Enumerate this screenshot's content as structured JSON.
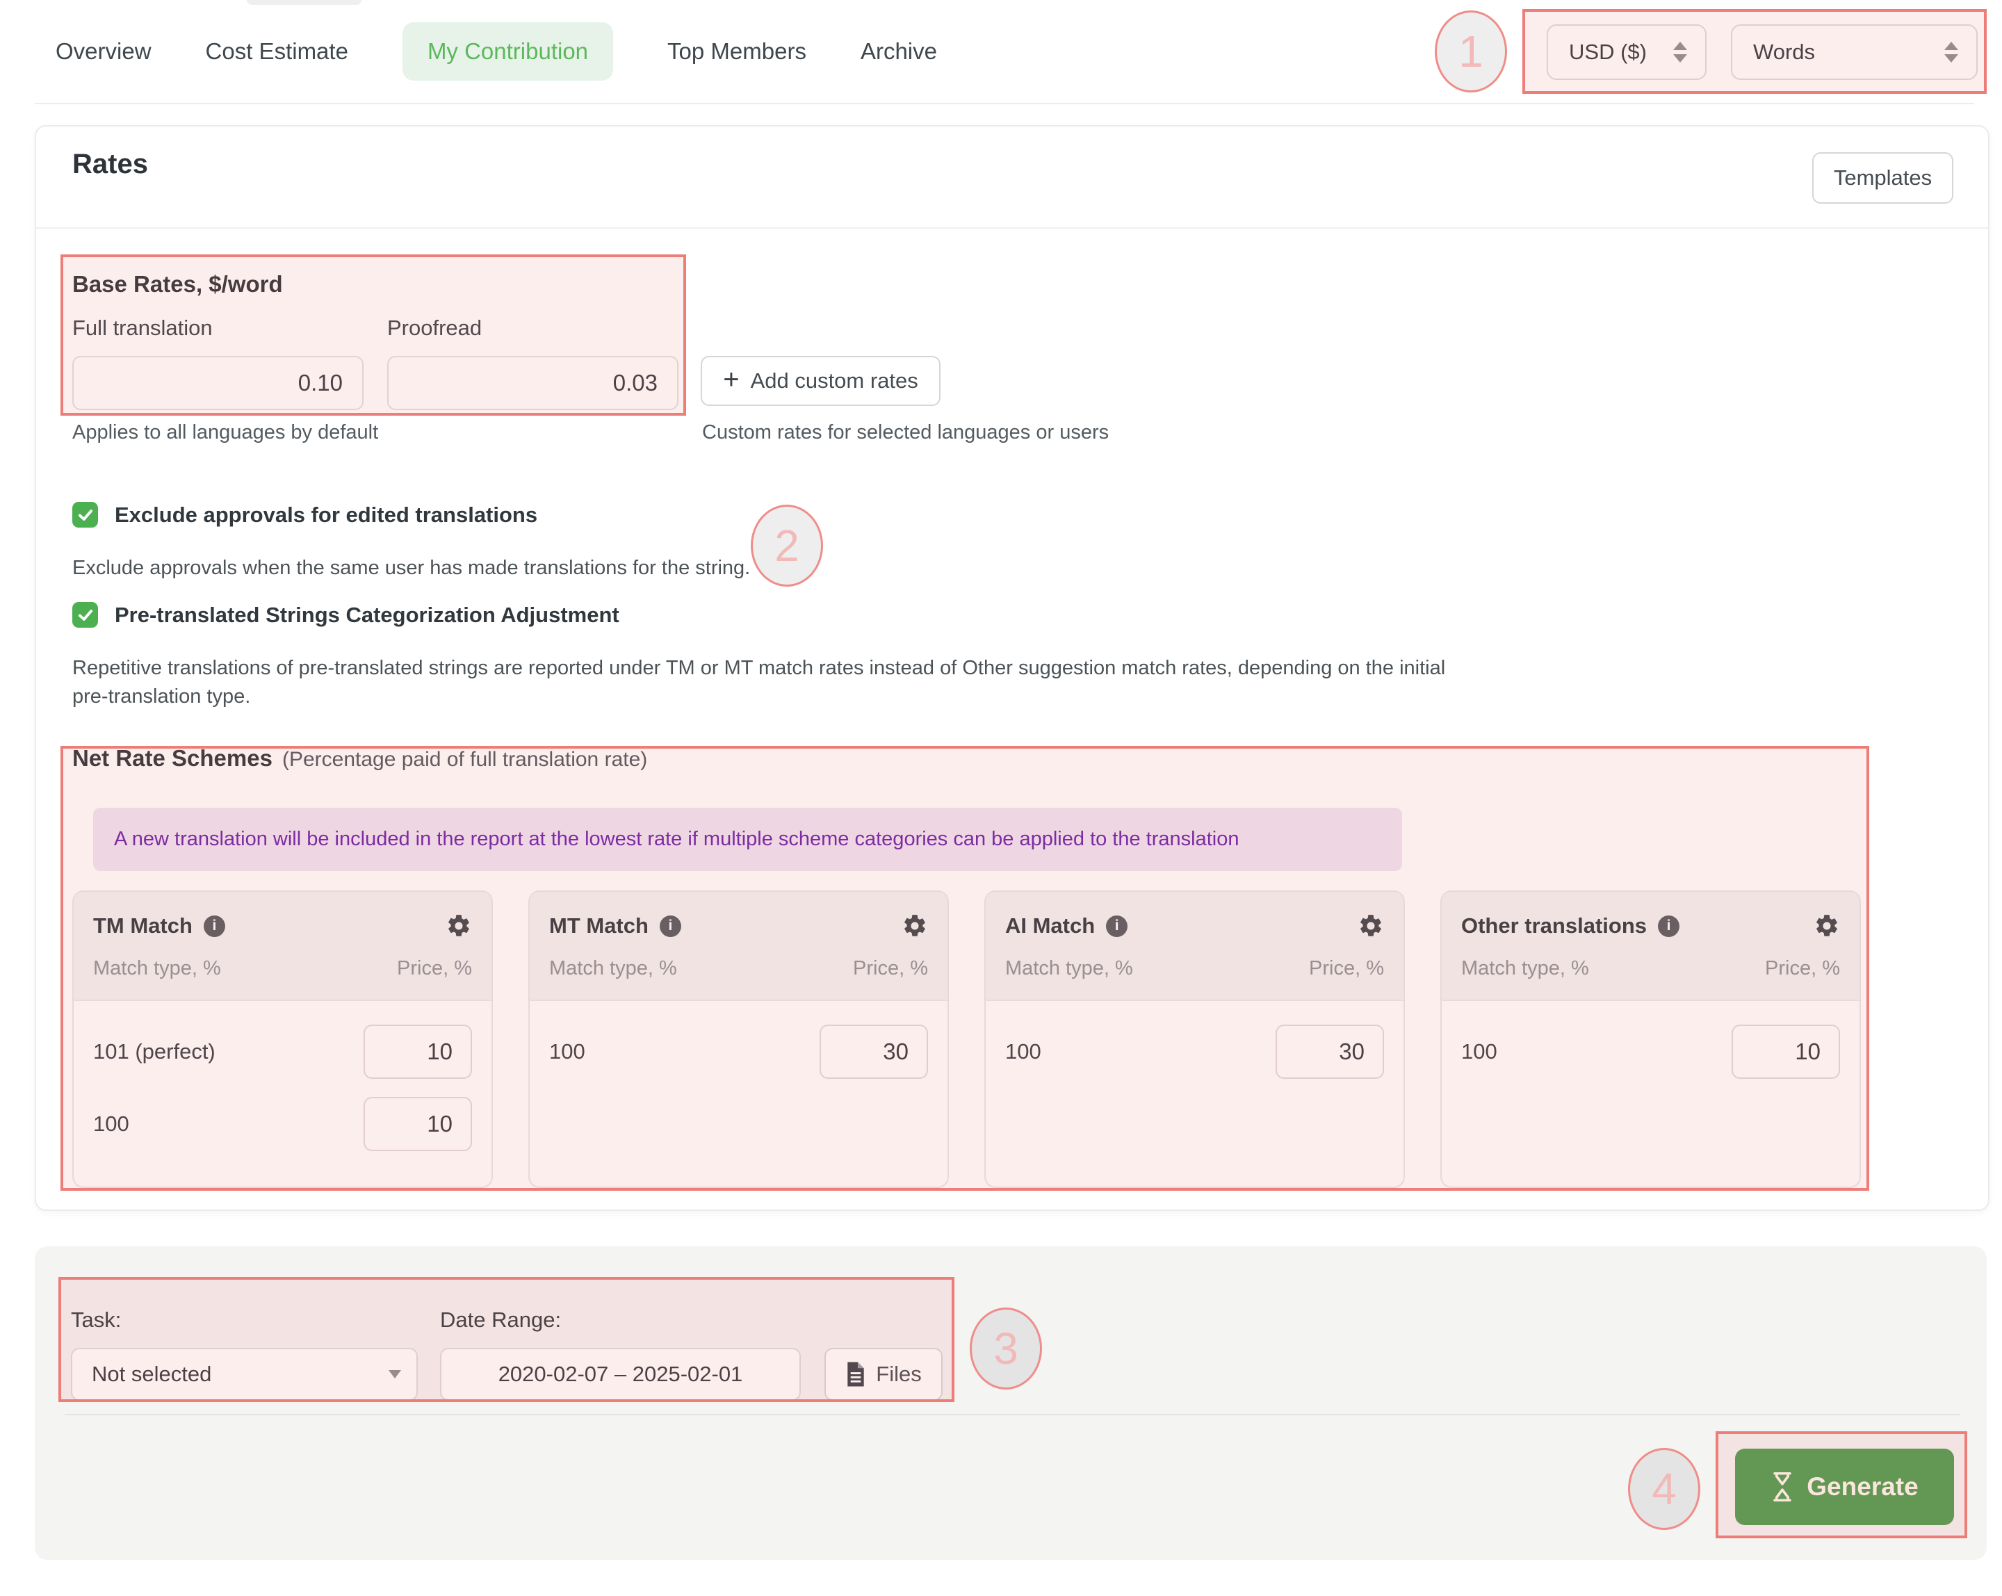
{
  "nav": {
    "tabs": [
      {
        "label": "Overview",
        "active": false
      },
      {
        "label": "Cost Estimate",
        "active": false
      },
      {
        "label": "My Contribution",
        "active": true
      },
      {
        "label": "Top Members",
        "active": false
      },
      {
        "label": "Archive",
        "active": false
      }
    ]
  },
  "controls": {
    "currency": {
      "value": "USD ($)"
    },
    "units": {
      "value": "Words"
    }
  },
  "rates": {
    "title": "Rates",
    "templates_button": "Templates",
    "base_rates": {
      "heading": "Base Rates, $/word",
      "fields": [
        {
          "label": "Full translation",
          "value": "0.10"
        },
        {
          "label": "Proofread",
          "value": "0.03"
        }
      ],
      "hint": "Applies to all languages by default"
    },
    "add_custom_rates": {
      "label": "Add custom rates",
      "hint": "Custom rates for selected languages or users"
    },
    "options": [
      {
        "label": "Exclude approvals for edited translations",
        "checked": true,
        "description": "Exclude approvals when the same user has made translations for the string."
      },
      {
        "label": "Pre-translated Strings Categorization Adjustment",
        "checked": true,
        "description": "Repetitive translations of pre-translated strings are reported under TM or MT match rates instead of Other suggestion match rates, depending on the initial pre-translation type."
      }
    ],
    "net_rate_schemes": {
      "title": "Net Rate Schemes",
      "subtitle": "(Percentage paid of full translation rate)",
      "note": "A new translation will be included in the report at the lowest rate if multiple scheme categories can be applied to the translation",
      "columns": {
        "match": "Match type, %",
        "price": "Price, %"
      },
      "cards": [
        {
          "title": "TM Match",
          "rows": [
            {
              "match": "101 (perfect)",
              "price": "10"
            },
            {
              "match": "100",
              "price": "10"
            }
          ]
        },
        {
          "title": "MT Match",
          "rows": [
            {
              "match": "100",
              "price": "30"
            }
          ]
        },
        {
          "title": "AI Match",
          "rows": [
            {
              "match": "100",
              "price": "30"
            }
          ]
        },
        {
          "title": "Other translations",
          "rows": [
            {
              "match": "100",
              "price": "10"
            }
          ]
        }
      ]
    }
  },
  "generator": {
    "task_label": "Task:",
    "task_value": "Not selected",
    "date_label": "Date Range:",
    "date_value": "2020-02-07 – 2025-02-01",
    "files_button": "Files",
    "generate_button": "Generate"
  },
  "annotations": {
    "markers": [
      {
        "n": "1"
      },
      {
        "n": "2"
      },
      {
        "n": "3"
      },
      {
        "n": "4"
      }
    ]
  },
  "colors": {
    "annotation_red": "#ec7d78",
    "tab_green": "#5cb85c",
    "tab_green_bg": "#e7f3e8",
    "checkbox_green": "#4caf50",
    "generate_green": "#4f9b4f",
    "note_purple": "#6b21a8",
    "note_purple_bg": "#efe4f3"
  }
}
